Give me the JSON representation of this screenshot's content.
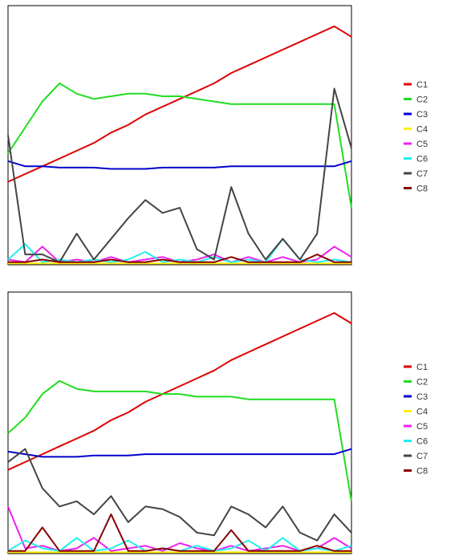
{
  "chart_data": [
    {
      "type": "line",
      "title": "",
      "xlabel": "",
      "ylabel": "",
      "grid": false,
      "legend_placement": "right",
      "xlim": [
        0,
        100
      ],
      "ylim": [
        0,
        100
      ],
      "x": [
        0,
        5,
        10,
        15,
        20,
        25,
        30,
        35,
        40,
        45,
        50,
        55,
        60,
        65,
        70,
        75,
        80,
        85,
        90,
        95,
        100
      ],
      "series": [
        {
          "name": "C1",
          "color": "#dd0000",
          "values": [
            32,
            35,
            38,
            41,
            44,
            47,
            51,
            54,
            58,
            61,
            64,
            67,
            70,
            74,
            77,
            80,
            83,
            86,
            89,
            92,
            88
          ]
        },
        {
          "name": "C2",
          "color": "#22dd22",
          "values": [
            43,
            53,
            63,
            70,
            66,
            64,
            65,
            66,
            66,
            65,
            65,
            64,
            63,
            62,
            62,
            62,
            62,
            62,
            62,
            62,
            22
          ]
        },
        {
          "name": "C3",
          "color": "#0000cc",
          "values": [
            40,
            38,
            38,
            37.5,
            37.5,
            37.5,
            37,
            37,
            37,
            37.5,
            37.5,
            37.5,
            37.5,
            38,
            38,
            38,
            38,
            38,
            38,
            38,
            40
          ]
        },
        {
          "name": "C4",
          "color": "#ffee00",
          "values": [
            0.5,
            0.5,
            0.5,
            0.5,
            0.5,
            0.5,
            0.5,
            0.5,
            0.5,
            0.5,
            0.5,
            0.5,
            0.5,
            0.5,
            0.5,
            0.5,
            0.5,
            0.5,
            0.5,
            0.5,
            0.5
          ]
        },
        {
          "name": "C5",
          "color": "#ee22ee",
          "values": [
            2,
            1,
            7,
            1,
            2,
            1,
            3,
            1,
            2,
            3,
            1,
            2,
            4,
            1,
            3,
            1,
            3,
            1,
            2,
            7,
            3
          ]
        },
        {
          "name": "C6",
          "color": "#22eeee",
          "values": [
            2,
            8,
            1,
            2,
            1,
            2,
            1,
            2,
            5,
            1,
            2,
            1,
            3,
            1,
            2,
            1,
            10,
            2,
            1,
            2,
            1
          ]
        },
        {
          "name": "C7",
          "color": "#444444",
          "values": [
            50,
            4,
            4,
            1,
            12,
            2,
            10,
            18,
            25,
            20,
            22,
            6,
            2,
            30,
            12,
            2,
            10,
            2,
            12,
            68,
            45
          ]
        },
        {
          "name": "C8",
          "color": "#880000",
          "values": [
            1,
            1,
            2,
            1,
            1,
            1,
            2,
            1,
            1,
            2,
            1,
            1,
            1,
            3,
            1,
            1,
            1,
            1,
            4,
            1,
            1
          ]
        }
      ]
    },
    {
      "type": "line",
      "title": "",
      "xlabel": "",
      "ylabel": "",
      "grid": false,
      "legend_placement": "right",
      "xlim": [
        0,
        100
      ],
      "ylim": [
        0,
        100
      ],
      "x": [
        0,
        5,
        10,
        15,
        20,
        25,
        30,
        35,
        40,
        45,
        50,
        55,
        60,
        65,
        70,
        75,
        80,
        85,
        90,
        95,
        100
      ],
      "series": [
        {
          "name": "C1",
          "color": "#dd0000",
          "values": [
            32,
            35,
            38,
            41,
            44,
            47,
            51,
            54,
            58,
            61,
            64,
            67,
            70,
            74,
            77,
            80,
            83,
            86,
            89,
            92,
            88
          ]
        },
        {
          "name": "C2",
          "color": "#22dd22",
          "values": [
            46,
            52,
            61,
            66,
            63,
            62,
            62,
            62,
            62,
            61,
            61,
            60,
            60,
            60,
            59,
            59,
            59,
            59,
            59,
            59,
            20
          ]
        },
        {
          "name": "C3",
          "color": "#0000cc",
          "values": [
            39,
            38,
            37,
            37,
            37,
            37.5,
            37.5,
            37.5,
            38,
            38,
            38,
            38,
            38,
            38,
            38,
            38,
            38,
            38,
            38,
            38,
            40
          ]
        },
        {
          "name": "C4",
          "color": "#ffee00",
          "values": [
            0.5,
            0.5,
            0.5,
            0.5,
            0.5,
            0.5,
            0.5,
            0.5,
            0.5,
            0.5,
            0.5,
            0.5,
            0.5,
            0.5,
            0.5,
            0.5,
            0.5,
            0.5,
            0.5,
            0.5,
            0.5
          ]
        },
        {
          "name": "C5",
          "color": "#ee22ee",
          "values": [
            18,
            2,
            3,
            1,
            2,
            6,
            1,
            2,
            3,
            1,
            4,
            2,
            1,
            3,
            1,
            2,
            3,
            1,
            2,
            6,
            2
          ]
        },
        {
          "name": "C6",
          "color": "#22eeee",
          "values": [
            1,
            5,
            2,
            1,
            6,
            1,
            2,
            5,
            1,
            2,
            1,
            3,
            1,
            2,
            5,
            1,
            6,
            1,
            2,
            1,
            3
          ]
        },
        {
          "name": "C7",
          "color": "#444444",
          "values": [
            35,
            40,
            25,
            18,
            20,
            15,
            22,
            12,
            18,
            17,
            14,
            8,
            7,
            18,
            15,
            10,
            18,
            8,
            5,
            15,
            8
          ]
        },
        {
          "name": "C8",
          "color": "#880000",
          "values": [
            1,
            1,
            10,
            1,
            1,
            1,
            15,
            1,
            1,
            2,
            1,
            1,
            1,
            9,
            1,
            1,
            1,
            1,
            3,
            1,
            1
          ]
        }
      ]
    }
  ]
}
